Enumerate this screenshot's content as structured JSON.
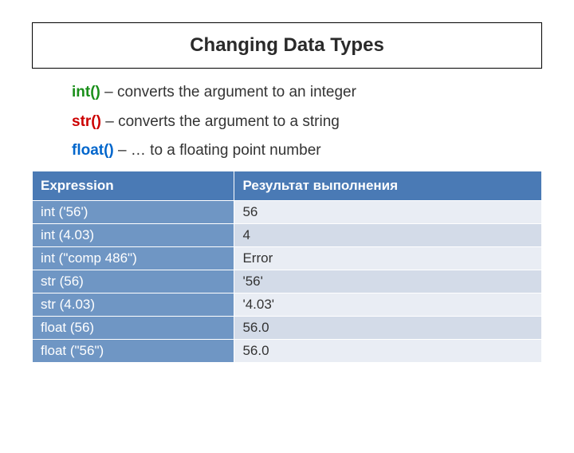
{
  "title": "Changing Data Types",
  "definitions": [
    {
      "fn": "int()",
      "color": "green",
      "desc": " – converts the argument to an integer"
    },
    {
      "fn": "str()",
      "color": "red",
      "desc": " – converts the argument to a string"
    },
    {
      "fn": "float()",
      "color": "blue",
      "desc": " – … to a floating point number"
    }
  ],
  "table": {
    "headers": {
      "expr": "Expression",
      "result": "Результат выполнения"
    },
    "rows": [
      {
        "expr": "int ('56')",
        "result": "56"
      },
      {
        "expr": "int (4.03)",
        "result": "4"
      },
      {
        "expr": "int (\"comp 486\")",
        "result": "Error"
      },
      {
        "expr": "str (56)",
        "result": "'56'"
      },
      {
        "expr": "str (4.03)",
        "result": "'4.03'"
      },
      {
        "expr": "float (56)",
        "result": "56.0"
      },
      {
        "expr": "float (\"56\")",
        "result": "56.0"
      }
    ]
  },
  "colors": {
    "header_bg": "#4a7ab5",
    "expr_bg": "#6f96c4",
    "row_odd_bg": "#e9edf4",
    "row_even_bg": "#d3dbe8"
  }
}
